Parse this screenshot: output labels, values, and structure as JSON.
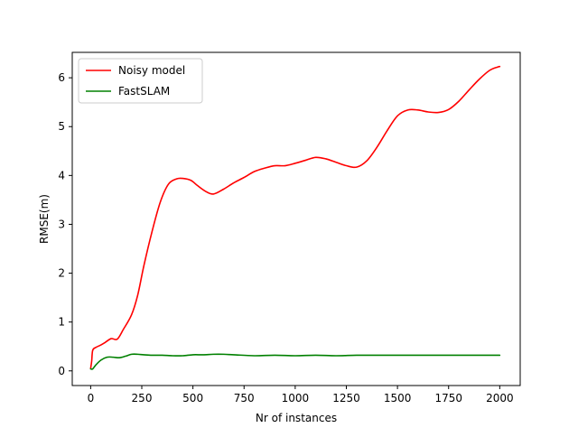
{
  "chart_data": {
    "type": "line",
    "title": "",
    "xlabel": "Nr of instances",
    "ylabel": "RMSE(m)",
    "xlim": [
      -90,
      2100
    ],
    "ylim": [
      -0.3,
      6.52
    ],
    "xticks": [
      0,
      250,
      500,
      750,
      1000,
      1250,
      1500,
      1750,
      2000
    ],
    "yticks": [
      0,
      1,
      2,
      3,
      4,
      5,
      6
    ],
    "xtick_labels": [
      "0",
      "250",
      "500",
      "750",
      "1000",
      "1250",
      "1500",
      "1750",
      "2000"
    ],
    "ytick_labels": [
      "0",
      "1",
      "2",
      "3",
      "4",
      "5",
      "6"
    ],
    "grid": false,
    "legend_position": "top-left",
    "series": [
      {
        "name": "Noisy model",
        "color": "#ff0000",
        "x": [
          0,
          5,
          10,
          25,
          50,
          70,
          100,
          130,
          160,
          200,
          230,
          260,
          300,
          340,
          380,
          420,
          450,
          490,
          520,
          560,
          600,
          650,
          700,
          750,
          800,
          850,
          900,
          950,
          1000,
          1050,
          1100,
          1150,
          1200,
          1250,
          1300,
          1350,
          1400,
          1450,
          1500,
          1550,
          1600,
          1650,
          1700,
          1750,
          1800,
          1850,
          1900,
          1950,
          1990,
          2000
        ],
        "y": [
          0.05,
          0.2,
          0.42,
          0.48,
          0.53,
          0.58,
          0.66,
          0.65,
          0.85,
          1.15,
          1.55,
          2.15,
          2.85,
          3.45,
          3.82,
          3.93,
          3.94,
          3.9,
          3.8,
          3.68,
          3.62,
          3.72,
          3.85,
          3.96,
          4.08,
          4.15,
          4.2,
          4.2,
          4.25,
          4.31,
          4.37,
          4.34,
          4.27,
          4.2,
          4.17,
          4.3,
          4.58,
          4.92,
          5.22,
          5.34,
          5.34,
          5.3,
          5.29,
          5.35,
          5.52,
          5.75,
          5.97,
          6.15,
          6.22,
          6.23
        ]
      },
      {
        "name": "FastSLAM",
        "color": "#008000",
        "x": [
          0,
          10,
          25,
          50,
          80,
          110,
          140,
          170,
          200,
          230,
          260,
          300,
          350,
          400,
          450,
          500,
          550,
          600,
          650,
          700,
          800,
          900,
          1000,
          1100,
          1200,
          1300,
          1400,
          1500,
          1600,
          1700,
          1800,
          1900,
          2000
        ],
        "y": [
          0.04,
          0.04,
          0.12,
          0.22,
          0.28,
          0.28,
          0.27,
          0.3,
          0.34,
          0.34,
          0.33,
          0.32,
          0.32,
          0.31,
          0.31,
          0.33,
          0.33,
          0.34,
          0.34,
          0.33,
          0.31,
          0.32,
          0.31,
          0.32,
          0.31,
          0.32,
          0.32,
          0.32,
          0.32,
          0.32,
          0.32,
          0.32,
          0.32
        ]
      }
    ]
  }
}
